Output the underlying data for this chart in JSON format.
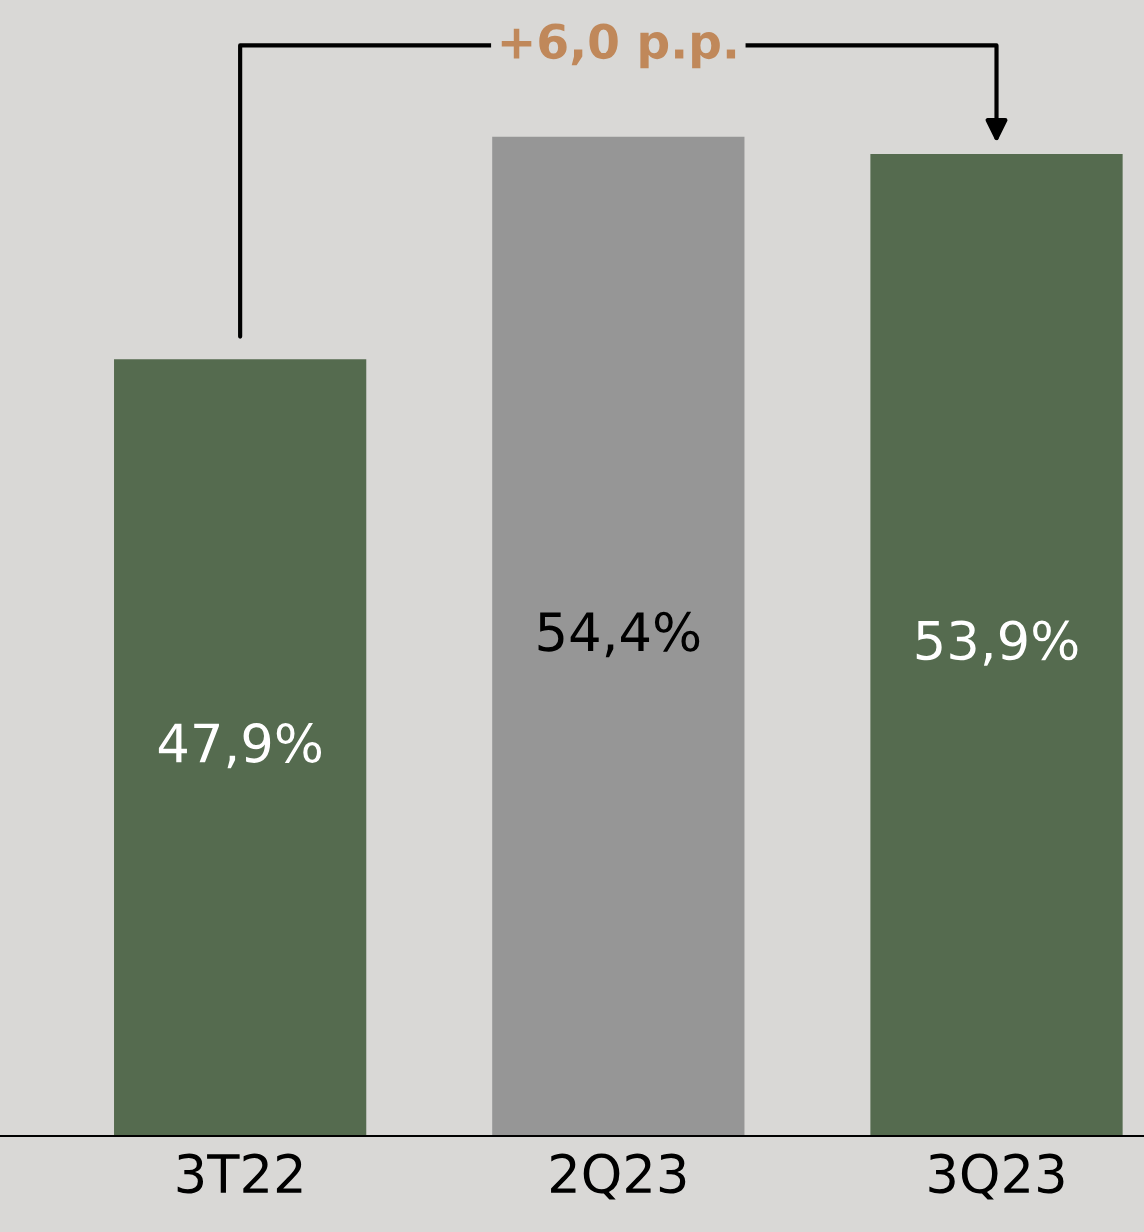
{
  "chart_data": {
    "type": "bar",
    "categories": [
      "3T22",
      "2Q23",
      "3Q23"
    ],
    "values": [
      47.9,
      54.4,
      53.9
    ],
    "colors": [
      "#556b4f",
      "#969696",
      "#556b4f"
    ],
    "value_labels": [
      "47,9%",
      "54,4%",
      "53,9%"
    ],
    "ylim": [
      25.2,
      58.4
    ],
    "tick_labels": "x",
    "annotations": [
      "+6,0 p.p."
    ]
  }
}
